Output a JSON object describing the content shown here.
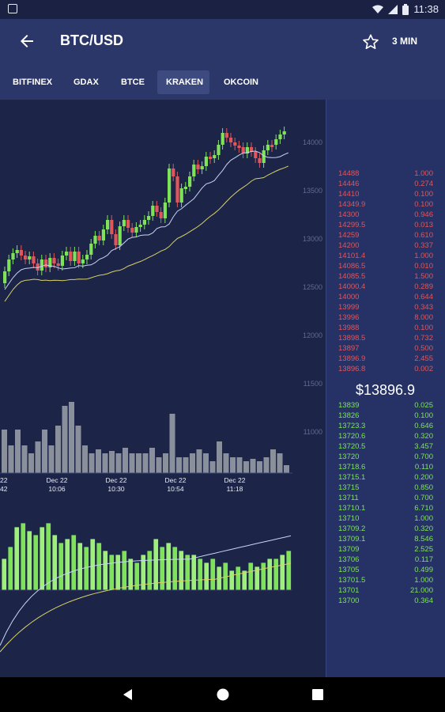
{
  "status_bar": {
    "time": "11:38",
    "icons": [
      "notification-icon",
      "wifi-icon",
      "signal-icon",
      "battery-icon"
    ]
  },
  "app_bar": {
    "title": "BTC/USD",
    "interval": "3 MIN"
  },
  "exchanges": [
    {
      "label": "BITFINEX",
      "active": false
    },
    {
      "label": "GDAX",
      "active": false
    },
    {
      "label": "BTCE",
      "active": false
    },
    {
      "label": "KRAKEN",
      "active": true
    },
    {
      "label": "OKCOIN",
      "active": false
    }
  ],
  "colors": {
    "up": "#7fe35a",
    "down": "#e0565b",
    "appbar": "#2b3769",
    "ma_fast": "#c9d4f5",
    "ma_slow": "#d8d06a"
  },
  "chart": {
    "price_axis": [
      "14000",
      "13500",
      "13000",
      "12500",
      "12000",
      "11500",
      "11000"
    ],
    "time_labels": [
      {
        "date": "Dec 22",
        "time": "10:06"
      },
      {
        "date": "Dec 22",
        "time": "10:30"
      },
      {
        "date": "Dec 22",
        "time": "10:54"
      },
      {
        "date": "Dec 22",
        "time": "11:18"
      }
    ],
    "left_cut_label": {
      "date": "22",
      "time": "42"
    }
  },
  "order_book": {
    "asks": [
      {
        "price": "14488",
        "qty": "1.000"
      },
      {
        "price": "14446",
        "qty": "0.274"
      },
      {
        "price": "14410",
        "qty": "0.100"
      },
      {
        "price": "14349.9",
        "qty": "0.100"
      },
      {
        "price": "14300",
        "qty": "0.946"
      },
      {
        "price": "14299.5",
        "qty": "0.013"
      },
      {
        "price": "14259",
        "qty": "0.610"
      },
      {
        "price": "14200",
        "qty": "0.337"
      },
      {
        "price": "14101.4",
        "qty": "1.000"
      },
      {
        "price": "14086.5",
        "qty": "0.010"
      },
      {
        "price": "14085.5",
        "qty": "1.500"
      },
      {
        "price": "14000.4",
        "qty": "0.289"
      },
      {
        "price": "14000",
        "qty": "0.644"
      },
      {
        "price": "13999",
        "qty": "0.343"
      },
      {
        "price": "13996",
        "qty": "8.000"
      },
      {
        "price": "13988",
        "qty": "0.100"
      },
      {
        "price": "13898.5",
        "qty": "0.732"
      },
      {
        "price": "13897",
        "qty": "0.500"
      },
      {
        "price": "13896.9",
        "qty": "2.455"
      },
      {
        "price": "13896.8",
        "qty": "0.002"
      }
    ],
    "last_price": "$13896.9",
    "bids": [
      {
        "price": "13839",
        "qty": "0.025"
      },
      {
        "price": "13826",
        "qty": "0.100"
      },
      {
        "price": "13723.3",
        "qty": "0.646"
      },
      {
        "price": "13720.6",
        "qty": "0.320"
      },
      {
        "price": "13720.5",
        "qty": "3.457"
      },
      {
        "price": "13720",
        "qty": "0.700"
      },
      {
        "price": "13718.6",
        "qty": "0.110"
      },
      {
        "price": "13715.1",
        "qty": "0.200"
      },
      {
        "price": "13715",
        "qty": "0.850"
      },
      {
        "price": "13711",
        "qty": "0.700"
      },
      {
        "price": "13710.1",
        "qty": "6.710"
      },
      {
        "price": "13710",
        "qty": "1.000"
      },
      {
        "price": "13709.2",
        "qty": "0.320"
      },
      {
        "price": "13709.1",
        "qty": "8.546"
      },
      {
        "price": "13709",
        "qty": "2.525"
      },
      {
        "price": "13706",
        "qty": "0.117"
      },
      {
        "price": "13705",
        "qty": "0.499"
      },
      {
        "price": "13701.5",
        "qty": "1.000"
      },
      {
        "price": "13701",
        "qty": "21.000"
      },
      {
        "price": "13700",
        "qty": "0.364"
      }
    ]
  }
}
